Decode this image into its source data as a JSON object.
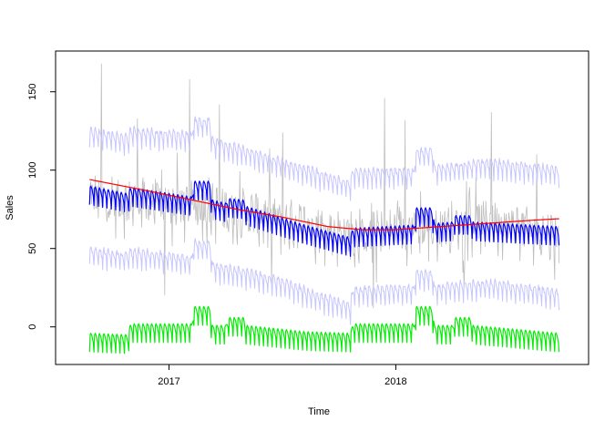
{
  "chart_data": {
    "type": "line",
    "xlabel": "Time",
    "ylabel": "Sales",
    "xlim": [
      2016.5,
      2018.85
    ],
    "ylim": [
      -24,
      176
    ],
    "x_ticks": [
      {
        "value": 2017,
        "label": "2017"
      },
      {
        "value": 2018,
        "label": "2018"
      }
    ],
    "y_ticks": [
      {
        "value": 0,
        "label": "0"
      },
      {
        "value": 50,
        "label": "50"
      },
      {
        "value": 100,
        "label": "100"
      },
      {
        "value": 150,
        "label": "150"
      }
    ],
    "grid": false,
    "legend": false,
    "colors": {
      "observed": "#bebebe",
      "interval": "#c6c6ff",
      "fitted": "#0000ff",
      "trend": "#ff0000",
      "seasonal": "#00ee00"
    },
    "series": [
      {
        "role": "trend",
        "color": "#ff0000",
        "x": [
          2016.65,
          2016.9,
          2017.1,
          2017.3,
          2017.5,
          2017.7,
          2017.85,
          2018.0,
          2018.2,
          2018.4,
          2018.6,
          2018.72
        ],
        "values": [
          94,
          87,
          81,
          75,
          70,
          64,
          62,
          62,
          64,
          66,
          68,
          69
        ]
      },
      {
        "role": "fitted",
        "color": "#0000ff",
        "x": [
          2016.65,
          2016.82,
          2016.83,
          2017.1,
          2017.11,
          2017.18,
          2017.19,
          2017.25,
          2017.26,
          2017.33,
          2017.34,
          2017.6,
          2017.8,
          2017.81,
          2018.08,
          2018.09,
          2018.16,
          2018.17,
          2018.25,
          2018.26,
          2018.33,
          2018.34,
          2018.72
        ],
        "values": [
          87,
          82,
          86,
          80,
          90,
          90,
          78,
          76,
          79,
          78,
          74,
          62,
          54,
          60,
          62,
          73,
          73,
          63,
          64,
          68,
          68,
          64,
          61
        ]
      },
      {
        "role": "upper-interval",
        "color": "#c6c6ff",
        "x": [
          2016.65,
          2016.82,
          2016.83,
          2017.1,
          2017.11,
          2017.18,
          2017.19,
          2017.3,
          2017.5,
          2017.6,
          2017.8,
          2017.81,
          2018.08,
          2018.09,
          2018.16,
          2018.17,
          2018.4,
          2018.72
        ],
        "values": [
          124,
          119,
          124,
          121,
          130,
          130,
          118,
          113,
          104,
          100,
          90,
          98,
          98,
          111,
          111,
          100,
          104,
          99
        ]
      },
      {
        "role": "lower-interval",
        "color": "#c6c6ff",
        "x": [
          2016.65,
          2016.82,
          2016.83,
          2017.1,
          2017.11,
          2017.18,
          2017.19,
          2017.3,
          2017.5,
          2017.6,
          2017.8,
          2017.81,
          2018.08,
          2018.09,
          2018.16,
          2018.17,
          2018.4,
          2018.72
        ],
        "values": [
          48,
          44,
          47,
          42,
          52,
          52,
          38,
          35,
          28,
          22,
          12,
          22,
          24,
          33,
          33,
          24,
          27,
          21
        ]
      },
      {
        "role": "seasonal",
        "color": "#00ee00",
        "x": [
          2016.65,
          2016.82,
          2016.83,
          2017.1,
          2017.11,
          2017.18,
          2017.19,
          2017.25,
          2017.26,
          2017.33,
          2017.34,
          2017.6,
          2017.8,
          2017.81,
          2018.08,
          2018.09,
          2018.16,
          2018.17,
          2018.25,
          2018.26,
          2018.33,
          2018.34,
          2018.72
        ],
        "values": [
          -7,
          -8,
          -1,
          -1,
          10,
          10,
          -2,
          -2,
          3,
          3,
          -2,
          -6,
          -7,
          -1,
          -1,
          10,
          10,
          -2,
          -2,
          3,
          3,
          -2,
          -7
        ]
      },
      {
        "role": "observed",
        "color": "#bebebe",
        "x": [
          2016.65,
          2016.72,
          2017.1,
          2017.2,
          2017.5,
          2017.7,
          2017.85,
          2018.0,
          2018.2,
          2018.45,
          2018.72
        ],
        "values": [
          85,
          80,
          78,
          76,
          68,
          62,
          58,
          62,
          64,
          67,
          58
        ],
        "spikes": [
          {
            "x": 2016.7,
            "y": 168
          },
          {
            "x": 2016.86,
            "y": 133
          },
          {
            "x": 2017.09,
            "y": 158
          },
          {
            "x": 2017.22,
            "y": 142
          },
          {
            "x": 2017.5,
            "y": 124
          },
          {
            "x": 2017.95,
            "y": 146
          },
          {
            "x": 2018.04,
            "y": 132
          },
          {
            "x": 2018.42,
            "y": 137
          },
          {
            "x": 2018.62,
            "y": 110
          },
          {
            "x": 2016.98,
            "y": 20
          },
          {
            "x": 2017.45,
            "y": 28
          },
          {
            "x": 2017.9,
            "y": 12
          },
          {
            "x": 2018.3,
            "y": 25
          },
          {
            "x": 2018.7,
            "y": 30
          }
        ]
      }
    ]
  }
}
